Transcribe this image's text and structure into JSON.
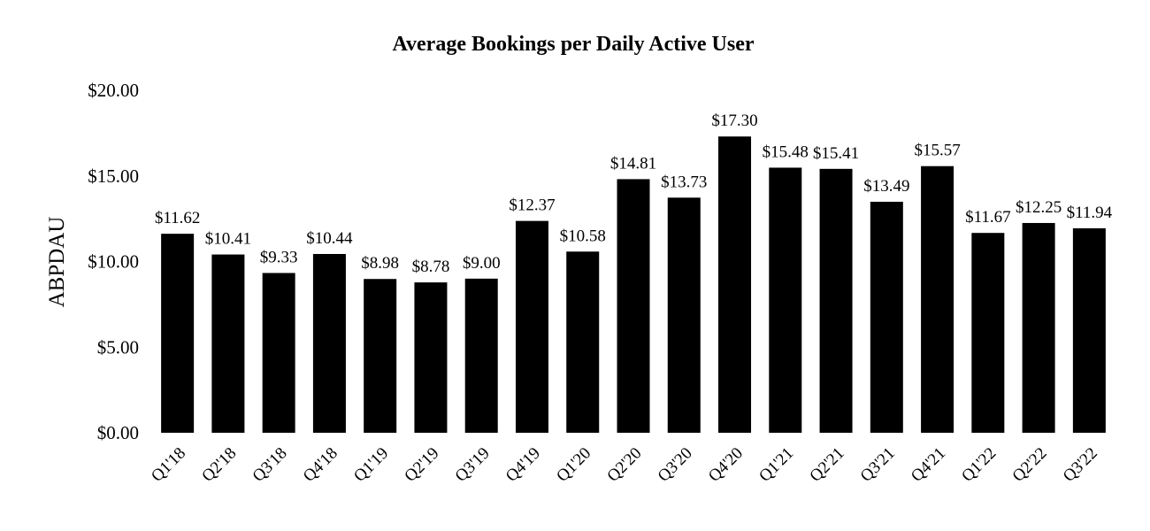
{
  "chart_data": {
    "type": "bar",
    "title": "Average Bookings per Daily Active User",
    "xlabel": "",
    "ylabel": "ABPDAU",
    "ylim": [
      0,
      20
    ],
    "ytick_values": [
      0,
      5,
      10,
      15,
      20
    ],
    "ytick_labels": [
      "$0.00",
      "$5.00",
      "$10.00",
      "$15.00",
      "$20.00"
    ],
    "categories": [
      "Q1'18",
      "Q2'18",
      "Q3'18",
      "Q4'18",
      "Q1'19",
      "Q2'19",
      "Q3'19",
      "Q4'19",
      "Q1'20",
      "Q2'20",
      "Q3'20",
      "Q4'20",
      "Q1'21",
      "Q2'21",
      "Q3'21",
      "Q4'21",
      "Q1'22",
      "Q2'22",
      "Q3'22"
    ],
    "values": [
      11.62,
      10.41,
      9.33,
      10.44,
      8.98,
      8.78,
      9.0,
      12.37,
      10.58,
      14.81,
      13.73,
      17.3,
      15.48,
      15.41,
      13.49,
      15.57,
      11.67,
      12.25,
      11.94
    ],
    "data_labels": [
      "$11.62",
      "$10.41",
      "$9.33",
      "$10.44",
      "$8.98",
      "$8.78",
      "$9.00",
      "$12.37",
      "$10.58",
      "$14.81",
      "$13.73",
      "$17.30",
      "$15.48",
      "$15.41",
      "$13.49",
      "$15.57",
      "$11.67",
      "$12.25",
      "$11.94"
    ],
    "grid": false,
    "legend": "none",
    "bar_color": "#000000"
  }
}
